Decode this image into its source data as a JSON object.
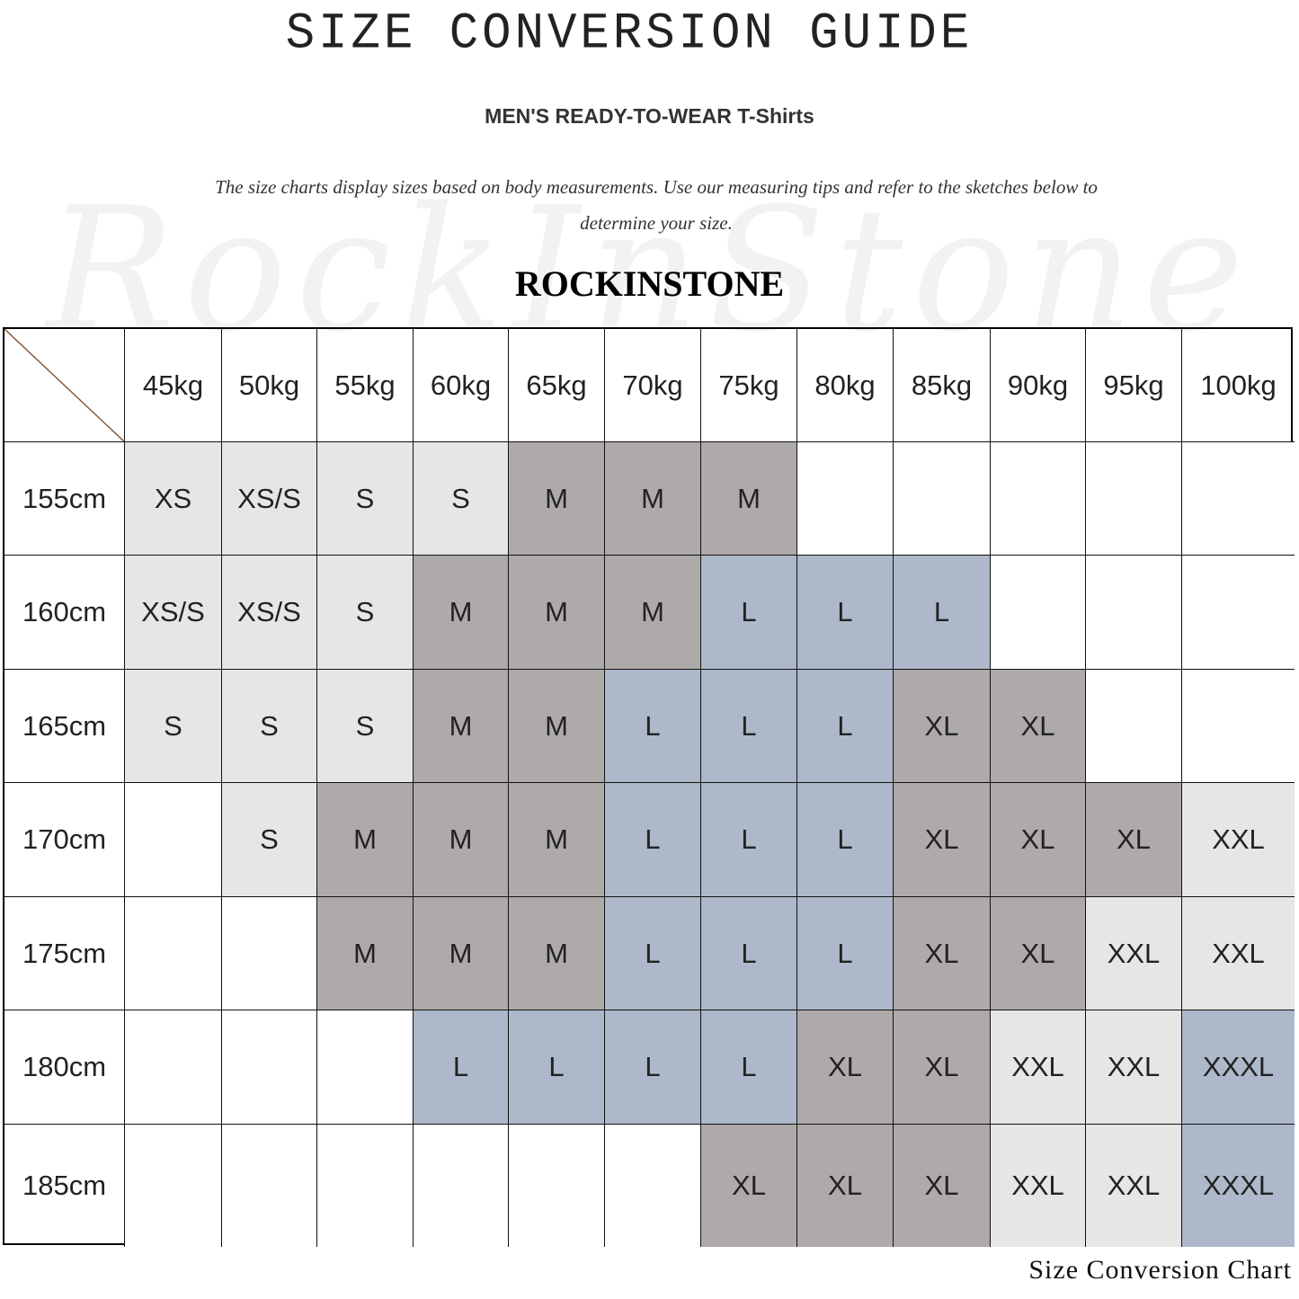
{
  "header": {
    "title": "SIZE CONVERSION GUIDE",
    "subtitle": "MEN'S READY-TO-WEAR T-Shirts",
    "description": "The size charts display sizes based on body measurements. Use our measuring tips and refer to the sketches below to determine your size.",
    "brand": "ROCKINSTONE",
    "watermark": "RockInStone"
  },
  "footer": {
    "caption": "Size Conversion Chart"
  },
  "colors": {
    "XS": "#e6e6e6",
    "XS/S": "#e6e6e6",
    "S": "#e6e6e6",
    "XXL": "#e6e6e6",
    "M": "#aeaaa9",
    "XL": "#aeaaa9",
    "L": "#adb9ca",
    "XXXL": "#adb9ca",
    "empty": "#ffffff",
    "corner_line": "#8a5a3c"
  },
  "chart_data": {
    "type": "table",
    "title": "SIZE CONVERSION GUIDE",
    "columns": [
      "45kg",
      "50kg",
      "55kg",
      "60kg",
      "65kg",
      "70kg",
      "75kg",
      "80kg",
      "85kg",
      "90kg",
      "95kg",
      "100kg"
    ],
    "rows": [
      "155cm",
      "160cm",
      "165cm",
      "170cm",
      "175cm",
      "180cm",
      "185cm"
    ],
    "cells": [
      [
        "XS",
        "XS/S",
        "S",
        "S",
        "M",
        "M",
        "M",
        "",
        "",
        "",
        "",
        ""
      ],
      [
        "XS/S",
        "XS/S",
        "S",
        "M",
        "M",
        "M",
        "L",
        "L",
        "L",
        "",
        "",
        ""
      ],
      [
        "S",
        "S",
        "S",
        "M",
        "M",
        "L",
        "L",
        "L",
        "XL",
        "XL",
        "",
        ""
      ],
      [
        "",
        "S",
        "M",
        "M",
        "M",
        "L",
        "L",
        "L",
        "XL",
        "XL",
        "XL",
        "XXL"
      ],
      [
        "",
        "",
        "M",
        "M",
        "M",
        "L",
        "L",
        "L",
        "XL",
        "XL",
        "XXL",
        "XXL"
      ],
      [
        "",
        "",
        "",
        "L",
        "L",
        "L",
        "L",
        "XL",
        "XL",
        "XXL",
        "XXL",
        "XXXL"
      ],
      [
        "",
        "",
        "",
        "",
        "",
        "",
        "XL",
        "XL",
        "XL",
        "XXL",
        "XXL",
        "XXXL"
      ]
    ]
  }
}
